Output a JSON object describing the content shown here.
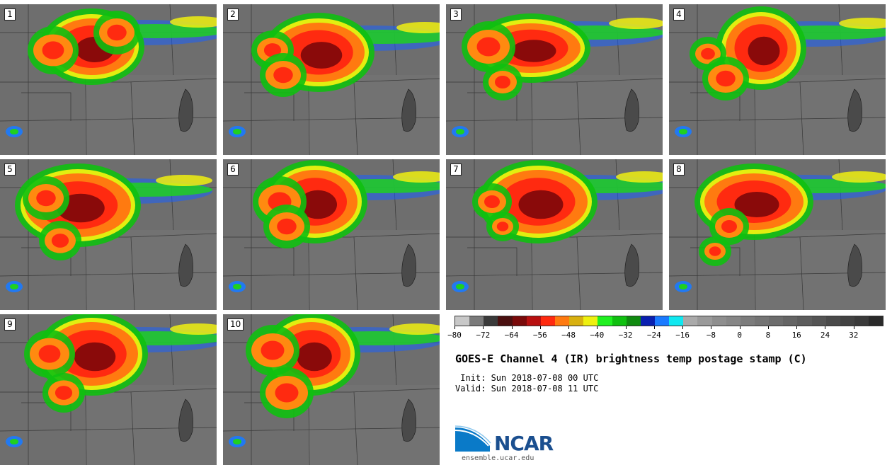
{
  "panels": [
    {
      "label": "1"
    },
    {
      "label": "2"
    },
    {
      "label": "3"
    },
    {
      "label": "4"
    },
    {
      "label": "5"
    },
    {
      "label": "6"
    },
    {
      "label": "7"
    },
    {
      "label": "8"
    },
    {
      "label": "9"
    },
    {
      "label": "10"
    }
  ],
  "colorbar": {
    "colors": [
      "#c8c8c8",
      "#7a7a7a",
      "#3a3a3a",
      "#4a1010",
      "#7a0a0a",
      "#b81010",
      "#ff2a10",
      "#ff7a10",
      "#d8b010",
      "#eef010",
      "#20f020",
      "#10c010",
      "#108a10",
      "#0a20b0",
      "#1a7aff",
      "#10e8f0",
      "#aaaaaa",
      "#9a9a9a",
      "#8e8e8e",
      "#868686",
      "#7c7c7c",
      "#747474",
      "#6c6c6c",
      "#646464",
      "#5c5c5c",
      "#545454",
      "#4a4a4a",
      "#424242",
      "#3a3a3a",
      "#2a2a2a"
    ],
    "tick_labels": [
      "−80",
      "−72",
      "−64",
      "−56",
      "−48",
      "−40",
      "−32",
      "−24",
      "−16",
      "−8",
      "0",
      "8",
      "16",
      "24",
      "32"
    ]
  },
  "title": "GOES-E Channel 4 (IR) brightness temp postage stamp (C)",
  "init_line": " Init: Sun 2018-07-08 00 UTC",
  "valid_line": "Valid: Sun 2018-07-08 11 UTC",
  "logo": {
    "text": "NCAR",
    "url": "ensemble.ucar.edu"
  }
}
